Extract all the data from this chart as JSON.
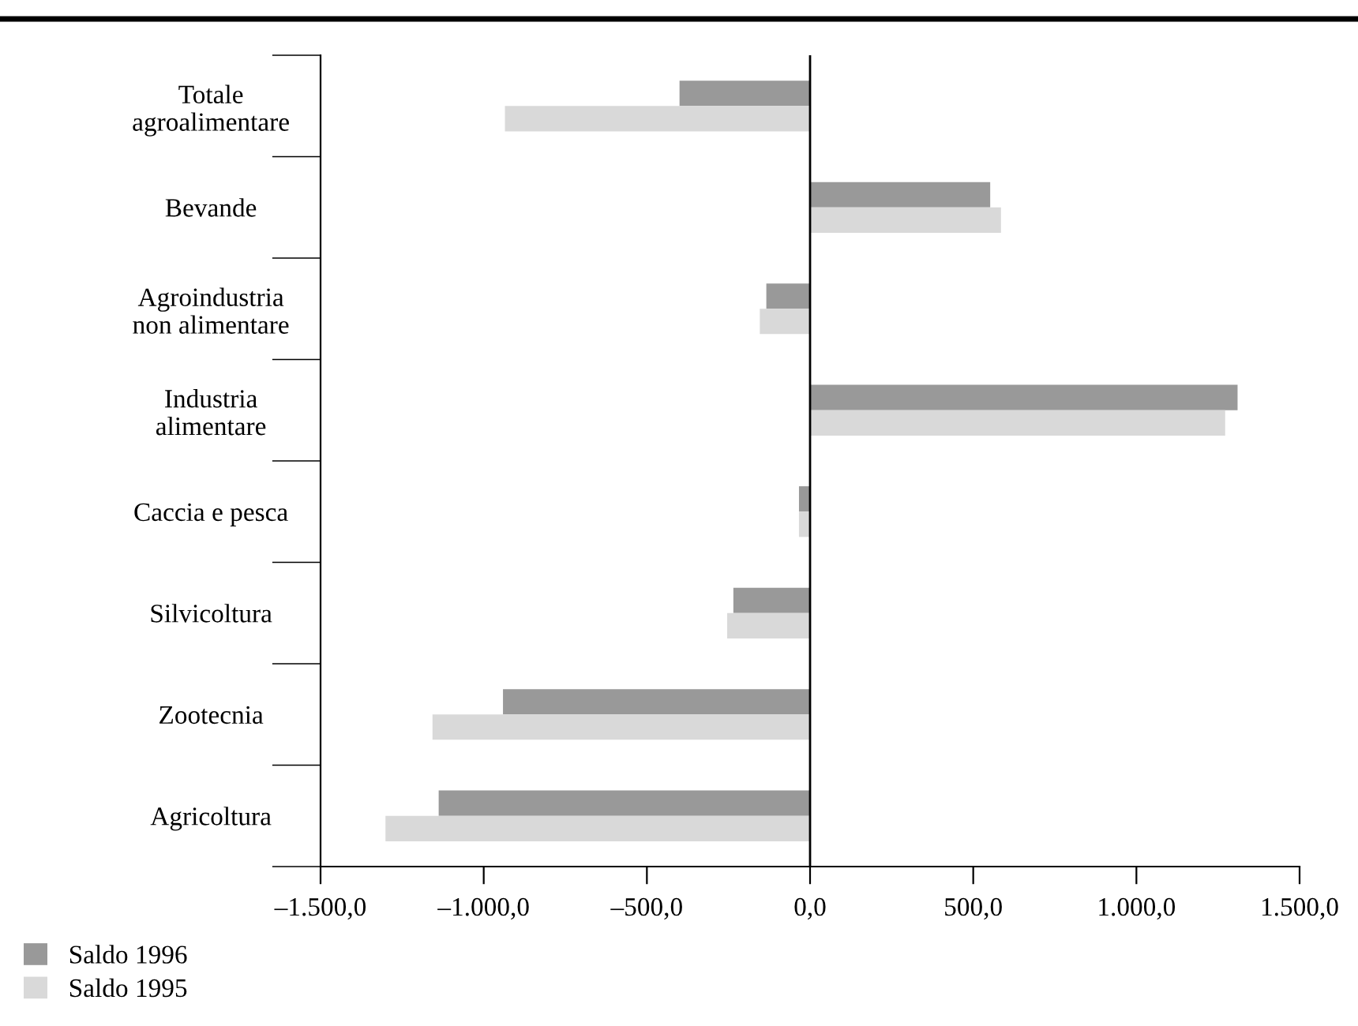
{
  "chart_data": {
    "type": "bar",
    "orientation": "horizontal",
    "categories": [
      "Totale\nagroalimentare",
      "Bevande",
      "Agroindustria\nnon alimentare",
      "Industria\nalimentare",
      "Caccia e pesca",
      "Silvicoltura",
      "Zootecnia",
      "Agricoltura"
    ],
    "series": [
      {
        "name": "Saldo 1996",
        "color": "#999999",
        "values": [
          -400,
          552,
          -134,
          1310,
          -34,
          -235,
          -941,
          -1138
        ]
      },
      {
        "name": "Saldo 1995",
        "color": "#d9d9d9",
        "values": [
          -935,
          585,
          -154,
          1272,
          -34,
          -254,
          -1157,
          -1301
        ]
      }
    ],
    "xlim": [
      -1500,
      1500
    ],
    "xticks": [
      {
        "value": -1500,
        "label": "–1.500,0"
      },
      {
        "value": -1000,
        "label": "–1.000,0"
      },
      {
        "value": -500,
        "label": "–500,0"
      },
      {
        "value": 0,
        "label": "0,0"
      },
      {
        "value": 500,
        "label": "500,0"
      },
      {
        "value": 1000,
        "label": "1.000,0"
      },
      {
        "value": 1500,
        "label": "1.500,0"
      }
    ],
    "ref_lines": [
      {
        "axis": "x",
        "value": 0
      }
    ],
    "legend": "bottom left"
  }
}
